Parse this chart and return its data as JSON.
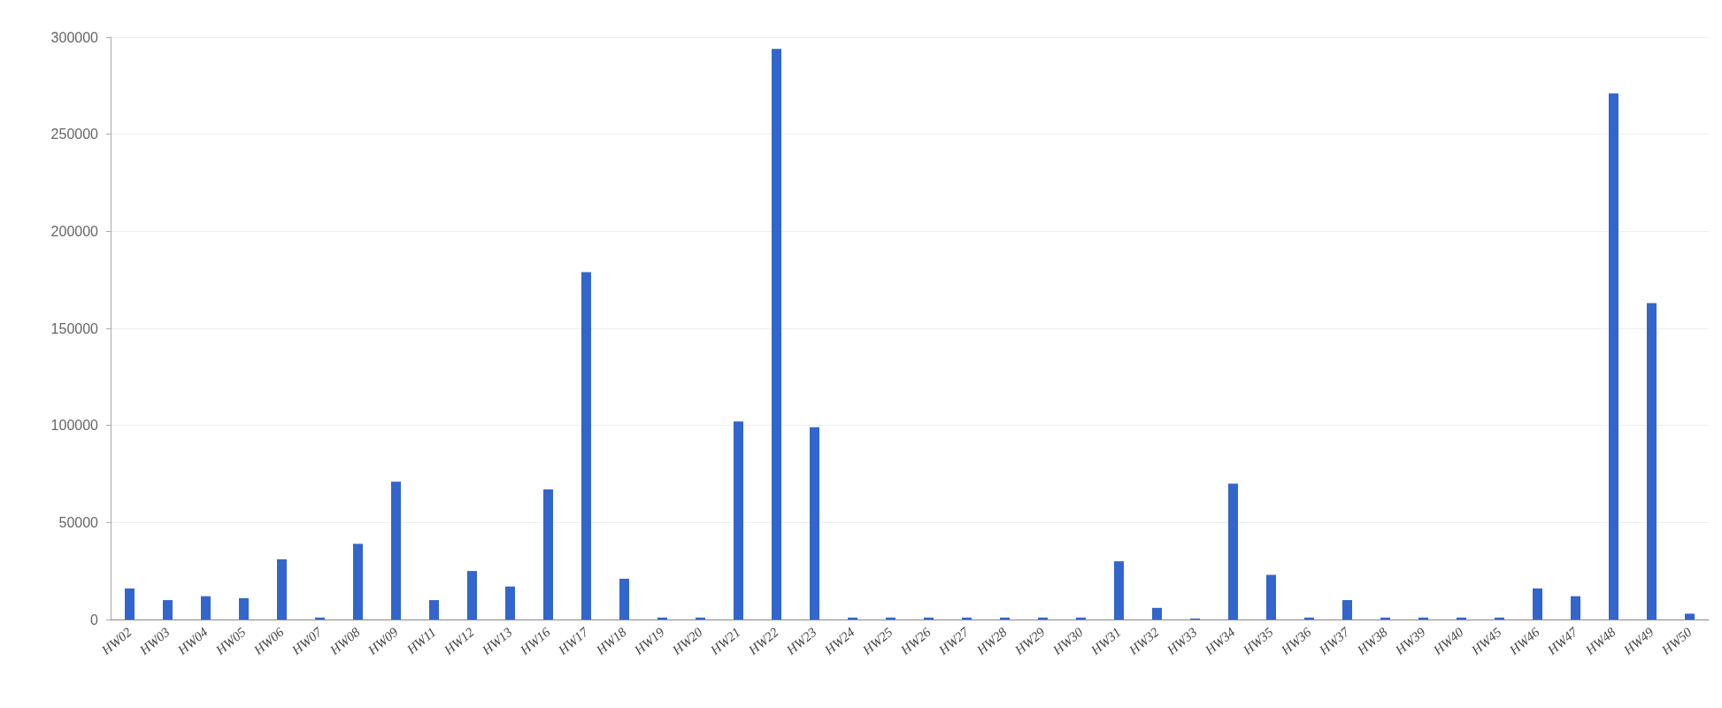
{
  "chart_data": {
    "type": "bar",
    "categories": [
      "HW02",
      "HW03",
      "HW04",
      "HW05",
      "HW06",
      "HW07",
      "HW08",
      "HW09",
      "HW11",
      "HW12",
      "HW13",
      "HW16",
      "HW17",
      "HW18",
      "HW19",
      "HW20",
      "HW21",
      "HW22",
      "HW23",
      "HW24",
      "HW25",
      "HW26",
      "HW27",
      "HW28",
      "HW29",
      "HW30",
      "HW31",
      "HW32",
      "HW33",
      "HW34",
      "HW35",
      "HW36",
      "HW37",
      "HW38",
      "HW39",
      "HW40",
      "HW45",
      "HW46",
      "HW47",
      "HW48",
      "HW49",
      "HW50"
    ],
    "values": [
      16000,
      10000,
      12000,
      11000,
      31000,
      1000,
      39000,
      71000,
      10000,
      25000,
      17000,
      67000,
      179000,
      21000,
      1000,
      1000,
      102000,
      294000,
      99000,
      1000,
      1000,
      1000,
      1000,
      1000,
      1000,
      1000,
      30000,
      6000,
      500,
      70000,
      23000,
      1000,
      10000,
      1000,
      1000,
      1000,
      1000,
      16000,
      12000,
      271000,
      163000,
      3000
    ],
    "color": "#3366cc",
    "ylim": [
      0,
      300000
    ],
    "yticks": [
      0,
      50000,
      100000,
      150000,
      200000,
      250000,
      300000
    ],
    "grid": "y"
  }
}
